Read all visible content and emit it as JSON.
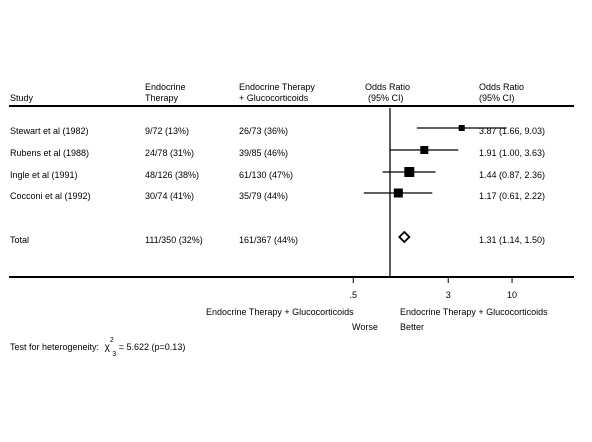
{
  "chart_data": {
    "type": "forest",
    "headers": {
      "study": "Study",
      "col1_line1": "Endocrine",
      "col1_line2": "Therapy",
      "col2_line1": "Endocrine Therapy",
      "col2_line2": "+ Glucocorticoids",
      "or_plot_line1": "Odds Ratio",
      "or_plot_line2": "(95% CI)",
      "or_text_line1": "Odds Ratio",
      "or_text_line2": "(95% CI)"
    },
    "studies": [
      {
        "name": "Stewart et al (1982)",
        "g1": "9/72 (13%)",
        "g2": "26/73 (36%)",
        "or_text": "3.87 (1.66, 9.03)",
        "or": 3.87,
        "lo": 1.66,
        "hi": 9.03
      },
      {
        "name": "Rubens et al (1988)",
        "g1": "24/78 (31%)",
        "g2": "39/85 (46%)",
        "or_text": "1.91 (1.00, 3.63)",
        "or": 1.91,
        "lo": 1.0,
        "hi": 3.63
      },
      {
        "name": "Ingle et al (1991)",
        "g1": "48/126 (38%)",
        "g2": "61/130 (47%)",
        "or_text": "1.44 (0.87, 2.36)",
        "or": 1.44,
        "lo": 0.87,
        "hi": 2.36
      },
      {
        "name": "Cocconi et al (1992)",
        "g1": "30/74 (41%)",
        "g2": "35/79 (44%)",
        "or_text": "1.17 (0.61, 2.22)",
        "or": 1.17,
        "lo": 0.61,
        "hi": 2.22
      }
    ],
    "total": {
      "name": "Total",
      "g1": "111/350 (32%)",
      "g2": "161/367 (44%)",
      "or_text": "1.31 (1.14, 1.50)",
      "or": 1.31,
      "lo": 1.14,
      "hi": 1.5
    },
    "x_scale": "log",
    "x_ticks": [
      {
        "value": 0.5,
        "label": ".5"
      },
      {
        "value": 3,
        "label": "3"
      },
      {
        "value": 10,
        "label": "10"
      }
    ],
    "reference_line": 1,
    "left_label_line1": "Endocrine Therapy + Glucocorticoids",
    "left_label_line2": "Worse",
    "right_label_line1": "Endocrine Therapy + Glucocorticoids",
    "right_label_line2": "Better",
    "heterogeneity": {
      "prefix": "Test for heterogeneity:",
      "chi": "χ",
      "df": "3",
      "sq": "2",
      "rest": " = 5.622 (p=0.13)"
    }
  }
}
